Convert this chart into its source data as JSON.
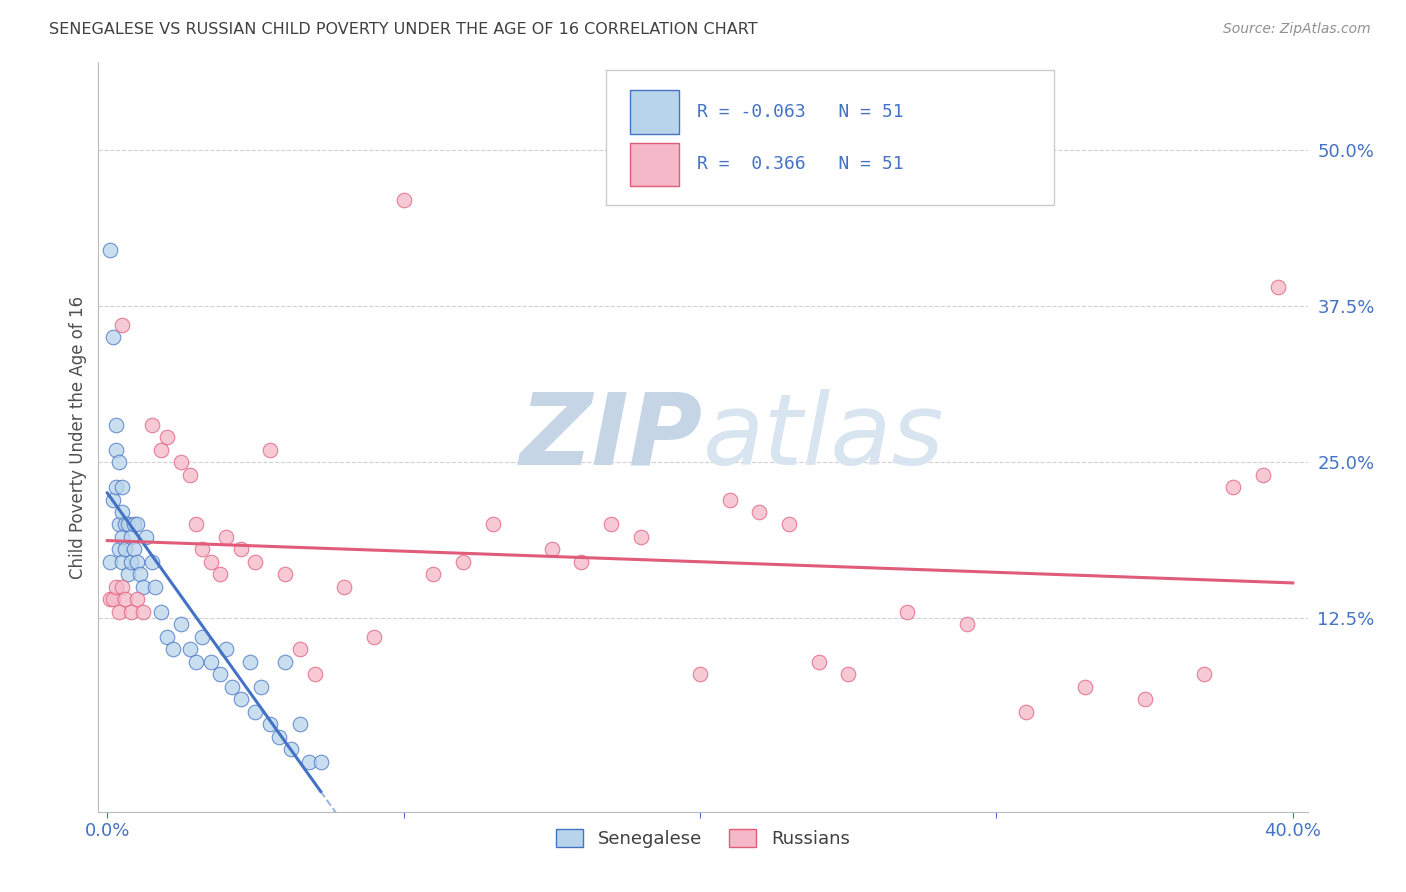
{
  "title": "SENEGALESE VS RUSSIAN CHILD POVERTY UNDER THE AGE OF 16 CORRELATION CHART",
  "source": "Source: ZipAtlas.com",
  "ylabel": "Child Poverty Under the Age of 16",
  "xlim": [
    -0.003,
    0.405
  ],
  "ylim": [
    -0.03,
    0.57
  ],
  "xticks": [
    0.0,
    0.1,
    0.2,
    0.3,
    0.4
  ],
  "xticklabels": [
    "0.0%",
    "",
    "",
    "",
    "40.0%"
  ],
  "yticks_right": [
    0.125,
    0.25,
    0.375,
    0.5
  ],
  "ytick_labels_right": [
    "12.5%",
    "25.0%",
    "37.5%",
    "50.0%"
  ],
  "legend_r_senegalese": "-0.063",
  "legend_r_russians": "0.366",
  "legend_n": "51",
  "color_senegalese_fill": "#b8d4ea",
  "color_senegalese_edge": "#4472C4",
  "color_russians_fill": "#f5b8c8",
  "color_russians_edge": "#E05C7A",
  "color_line_senegalese": "#4472C4",
  "color_line_russians": "#E05C7A",
  "color_ticks": "#4472C4",
  "color_grid": "#d0d0d0",
  "watermark_zip": "ZIP",
  "watermark_atlas": "atlas",
  "watermark_color": "#ccd9e8",
  "sen_x": [
    0.001,
    0.001,
    0.002,
    0.002,
    0.003,
    0.003,
    0.003,
    0.004,
    0.004,
    0.004,
    0.005,
    0.005,
    0.005,
    0.005,
    0.006,
    0.006,
    0.007,
    0.007,
    0.008,
    0.008,
    0.009,
    0.009,
    0.01,
    0.01,
    0.011,
    0.012,
    0.013,
    0.015,
    0.016,
    0.018,
    0.02,
    0.022,
    0.025,
    0.028,
    0.03,
    0.032,
    0.035,
    0.038,
    0.04,
    0.042,
    0.045,
    0.048,
    0.05,
    0.052,
    0.055,
    0.058,
    0.06,
    0.062,
    0.065,
    0.068,
    0.072
  ],
  "sen_y": [
    0.42,
    0.17,
    0.35,
    0.22,
    0.28,
    0.26,
    0.23,
    0.2,
    0.25,
    0.18,
    0.23,
    0.21,
    0.19,
    0.17,
    0.2,
    0.18,
    0.2,
    0.16,
    0.19,
    0.17,
    0.2,
    0.18,
    0.2,
    0.17,
    0.16,
    0.15,
    0.19,
    0.17,
    0.15,
    0.13,
    0.11,
    0.1,
    0.12,
    0.1,
    0.09,
    0.11,
    0.09,
    0.08,
    0.1,
    0.07,
    0.06,
    0.09,
    0.05,
    0.07,
    0.04,
    0.03,
    0.09,
    0.02,
    0.04,
    0.01,
    0.01
  ],
  "rus_x": [
    0.001,
    0.002,
    0.003,
    0.004,
    0.005,
    0.006,
    0.008,
    0.01,
    0.012,
    0.015,
    0.018,
    0.02,
    0.025,
    0.028,
    0.03,
    0.032,
    0.035,
    0.038,
    0.04,
    0.045,
    0.05,
    0.055,
    0.06,
    0.065,
    0.07,
    0.08,
    0.09,
    0.1,
    0.11,
    0.12,
    0.13,
    0.15,
    0.16,
    0.17,
    0.18,
    0.2,
    0.21,
    0.22,
    0.23,
    0.24,
    0.25,
    0.27,
    0.29,
    0.31,
    0.33,
    0.35,
    0.37,
    0.38,
    0.39,
    0.395,
    0.005
  ],
  "rus_y": [
    0.14,
    0.14,
    0.15,
    0.13,
    0.15,
    0.14,
    0.13,
    0.14,
    0.13,
    0.28,
    0.26,
    0.27,
    0.25,
    0.24,
    0.2,
    0.18,
    0.17,
    0.16,
    0.19,
    0.18,
    0.17,
    0.26,
    0.16,
    0.1,
    0.08,
    0.15,
    0.11,
    0.46,
    0.16,
    0.17,
    0.2,
    0.18,
    0.17,
    0.2,
    0.19,
    0.08,
    0.22,
    0.21,
    0.2,
    0.09,
    0.08,
    0.13,
    0.12,
    0.05,
    0.07,
    0.06,
    0.08,
    0.23,
    0.24,
    0.39,
    0.36
  ]
}
